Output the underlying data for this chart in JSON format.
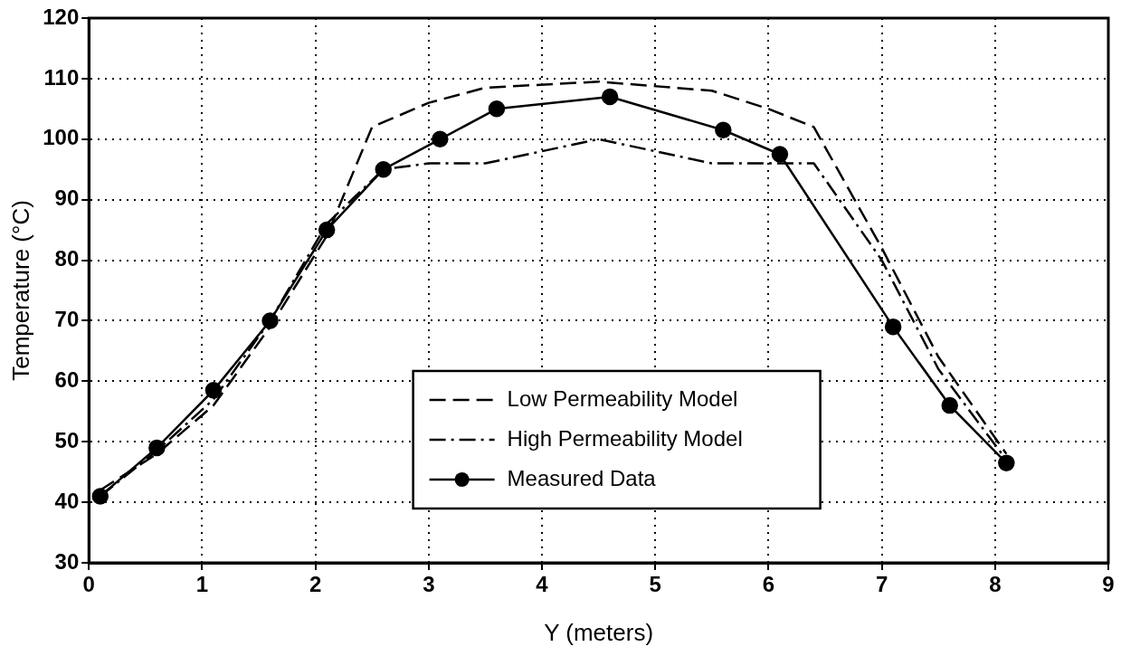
{
  "chart_data": {
    "type": "line",
    "xlabel": "Y (meters)",
    "ylabel": "Temperature (°C)",
    "xlim": [
      0,
      9
    ],
    "xticks": [
      0,
      1,
      2,
      3,
      4,
      5,
      6,
      7,
      8,
      9
    ],
    "ylim": [
      30,
      120
    ],
    "yticks": [
      30,
      40,
      50,
      60,
      70,
      80,
      90,
      100,
      110,
      120
    ],
    "grid": true,
    "legend": "bottom",
    "series": [
      {
        "name": "Low Permeability Model",
        "color": "#000000",
        "line_style": "dashed",
        "marker": "none",
        "x": [
          0.1,
          0.6,
          1.1,
          1.6,
          2.1,
          2.5,
          3.0,
          3.5,
          4.5,
          5.5,
          6.0,
          6.4,
          7.0,
          7.5,
          8.1
        ],
        "values": [
          42,
          48,
          56,
          69,
          84,
          102,
          106,
          108.5,
          109.5,
          108,
          105,
          102,
          82,
          64,
          48
        ]
      },
      {
        "name": "High Permeability Model",
        "color": "#000000",
        "line_style": "dashdot",
        "marker": "none",
        "x": [
          0.1,
          0.6,
          1.1,
          1.6,
          2.1,
          2.6,
          3.0,
          3.5,
          4.5,
          5.5,
          6.0,
          6.4,
          7.0,
          7.5,
          8.1
        ],
        "values": [
          41,
          48.5,
          57,
          70,
          86,
          95,
          96,
          96,
          100,
          96,
          96,
          96,
          80,
          62,
          47
        ]
      },
      {
        "name": "Measured Data",
        "color": "#000000",
        "line_style": "solid",
        "marker": "circle",
        "x": [
          0.1,
          0.6,
          1.1,
          1.6,
          2.1,
          2.6,
          3.1,
          3.6,
          4.6,
          5.6,
          6.1,
          7.1,
          7.6,
          8.1
        ],
        "values": [
          41,
          49,
          58.5,
          70,
          85,
          95,
          100,
          105,
          107,
          101.5,
          97.5,
          69,
          56,
          46.5
        ]
      }
    ]
  }
}
